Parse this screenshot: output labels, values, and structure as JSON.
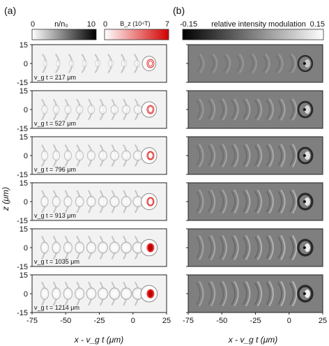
{
  "figure": {
    "panel_a_label": "(a)",
    "panel_b_label": "(b)"
  },
  "colorbars": {
    "density": {
      "label": "n/n₀",
      "min": "0",
      "max": "10",
      "colors": [
        "#ffffff",
        "#000000"
      ]
    },
    "bfield": {
      "label": "B_z (10⁴T)",
      "min": "0",
      "max": "7",
      "colors": [
        "#ffffff",
        "#d40000"
      ]
    },
    "modulation": {
      "label": "relative intensity modulation",
      "min": "-0.15",
      "max": "0.15",
      "colors": [
        "#000000",
        "#ffffff"
      ]
    }
  },
  "axes": {
    "ylabel": "z (μm)",
    "xlabel_a": "x - v_g t (μm)",
    "xlabel_b": "x - v_g t (μm)",
    "yticks": [
      "15",
      "0",
      "-15"
    ],
    "xticks": [
      "-75",
      "-50",
      "-25",
      "0",
      "25"
    ],
    "x_range": [
      -75,
      25
    ],
    "z_range": [
      -15,
      15
    ]
  },
  "rows": [
    {
      "time_label": "v_g t = 217 μm",
      "bubbles": 8,
      "contrast": 0.25
    },
    {
      "time_label": "v_g t = 527 μm",
      "bubbles": 9,
      "contrast": 0.55
    },
    {
      "time_label": "v_g t = 796 μm",
      "bubbles": 9,
      "contrast": 0.7
    },
    {
      "time_label": "v_g t = 913 μm",
      "bubbles": 9,
      "contrast": 0.8
    },
    {
      "time_label": "v_g t = 1035 μm",
      "bubbles": 9,
      "contrast": 0.9
    },
    {
      "time_label": "v_g t = 1214 μm",
      "bubbles": 9,
      "contrast": 0.95
    }
  ]
}
